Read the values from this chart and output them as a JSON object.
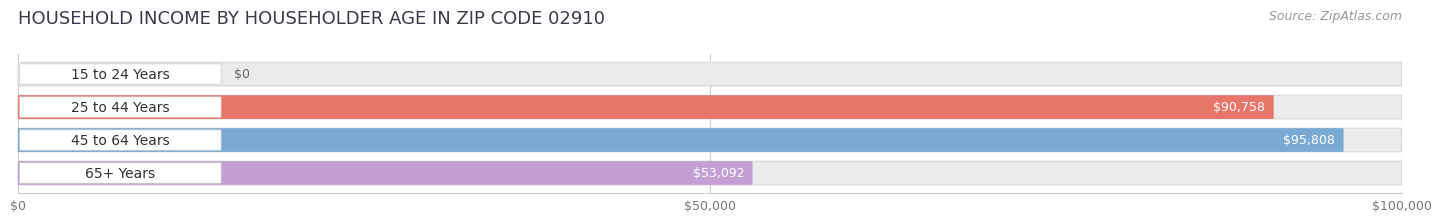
{
  "title": "HOUSEHOLD INCOME BY HOUSEHOLDER AGE IN ZIP CODE 02910",
  "source": "Source: ZipAtlas.com",
  "categories": [
    "15 to 24 Years",
    "25 to 44 Years",
    "45 to 64 Years",
    "65+ Years"
  ],
  "values": [
    0,
    90758,
    95808,
    53092
  ],
  "bar_colors": [
    "#f0c090",
    "#e8756a",
    "#7aaad4",
    "#c49fd4"
  ],
  "xlim": [
    0,
    100000
  ],
  "xticks": [
    0,
    50000,
    100000
  ],
  "xticklabels": [
    "$0",
    "$50,000",
    "$100,000"
  ],
  "bar_background_color": "#ebebeb",
  "title_fontsize": 13,
  "source_fontsize": 9,
  "label_fontsize": 10,
  "value_fontsize": 9,
  "bar_height": 0.72,
  "fig_width": 14.06,
  "fig_height": 2.33
}
